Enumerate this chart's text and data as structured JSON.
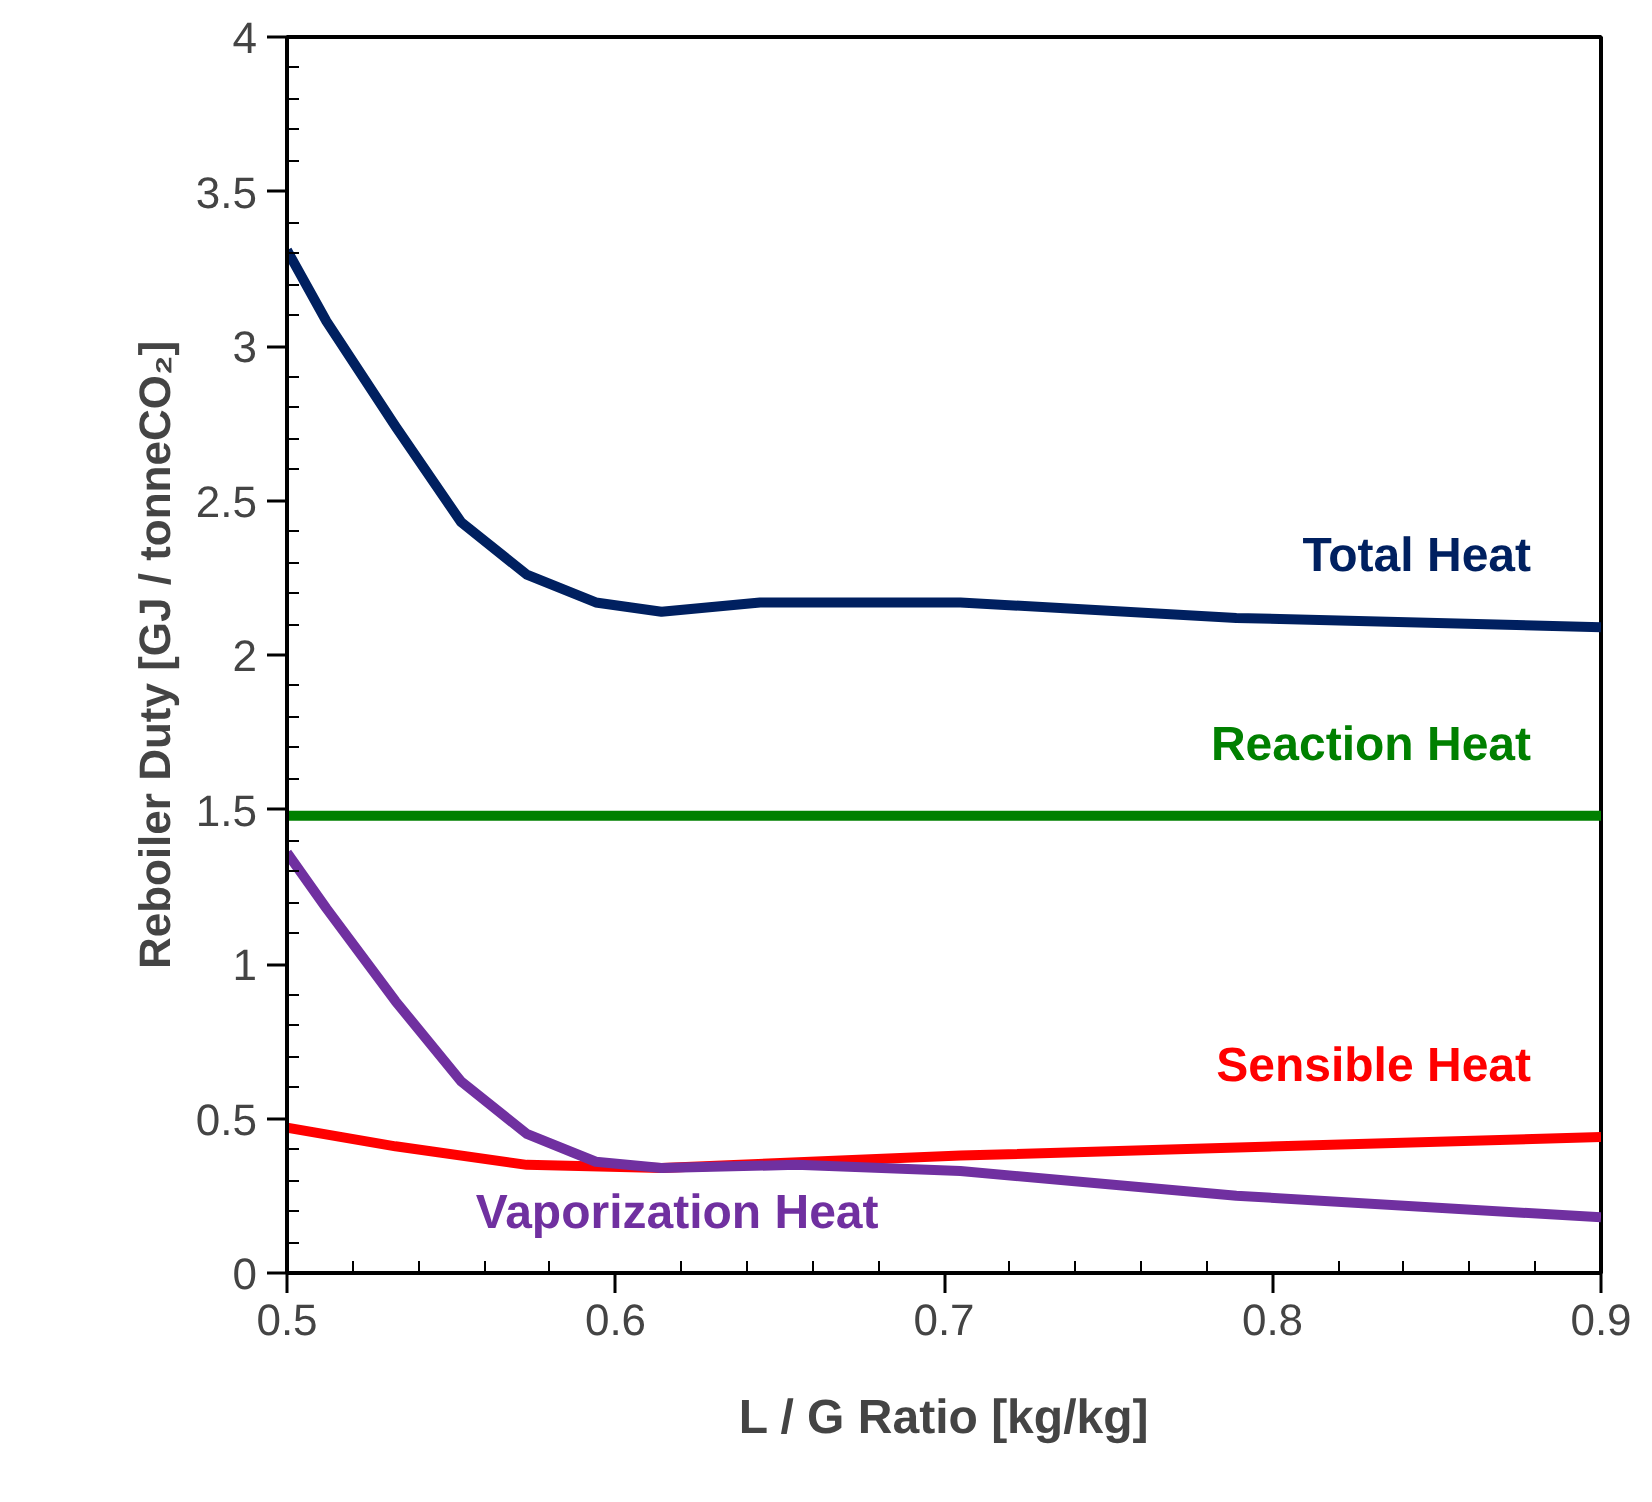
{
  "chart_data": {
    "type": "line",
    "xlabel": "L / G Ratio [kg/kg]",
    "ylabel": "Reboiler Duty [GJ / tonneCO₂]",
    "xlim": [
      0.5,
      0.9
    ],
    "ylim": [
      0,
      4
    ],
    "xticks": [
      0.5,
      0.6,
      0.7,
      0.8,
      0.9
    ],
    "yticks": [
      0,
      0.5,
      1,
      1.5,
      2,
      2.5,
      3,
      3.5,
      4
    ],
    "grid": false,
    "marker": "none",
    "line_style": "solid",
    "series": [
      {
        "name": "Total Heat",
        "color": "#002060",
        "x": [
          0.5,
          0.512,
          0.533,
          0.553,
          0.573,
          0.594,
          0.614,
          0.644,
          0.687,
          0.705,
          0.789,
          0.9
        ],
        "values": [
          3.31,
          3.08,
          2.74,
          2.43,
          2.26,
          2.17,
          2.14,
          2.17,
          2.17,
          2.17,
          2.12,
          2.09
        ]
      },
      {
        "name": "Reaction Heat",
        "color": "#008000",
        "x": [
          0.5,
          0.9
        ],
        "values": [
          1.48,
          1.48
        ]
      },
      {
        "name": "Sensible Heat",
        "color": "#ff0000",
        "x": [
          0.5,
          0.533,
          0.573,
          0.614,
          0.705,
          0.9
        ],
        "values": [
          0.47,
          0.41,
          0.35,
          0.34,
          0.38,
          0.44
        ]
      },
      {
        "name": "Vaporization Heat",
        "color": "#7030a0",
        "x": [
          0.5,
          0.512,
          0.533,
          0.553,
          0.573,
          0.594,
          0.614,
          0.655,
          0.705,
          0.789,
          0.9
        ],
        "values": [
          1.36,
          1.18,
          0.88,
          0.62,
          0.45,
          0.36,
          0.34,
          0.35,
          0.33,
          0.25,
          0.18
        ]
      }
    ]
  }
}
